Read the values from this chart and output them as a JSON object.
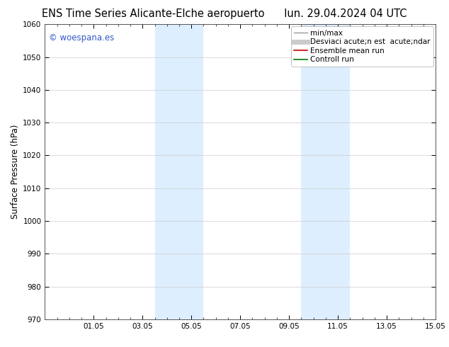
{
  "title_left": "ENS Time Series Alicante-Elche aeropuerto",
  "title_right": "lun. 29.04.2024 04 UTC",
  "ylabel": "Surface Pressure (hPa)",
  "xlim_start": 0,
  "xlim_end": 16,
  "ylim": [
    970,
    1060
  ],
  "yticks": [
    970,
    980,
    990,
    1000,
    1010,
    1020,
    1030,
    1040,
    1050,
    1060
  ],
  "xtick_labels": [
    "01.05",
    "03.05",
    "05.05",
    "07.05",
    "09.05",
    "11.05",
    "13.05",
    "15.05"
  ],
  "xtick_positions": [
    2,
    4,
    6,
    8,
    10,
    12,
    14,
    16
  ],
  "shaded_bands": [
    {
      "x_start": 4.5,
      "x_end": 6.5
    },
    {
      "x_start": 10.5,
      "x_end": 12.5
    }
  ],
  "shade_color": "#ddeeff",
  "watermark_text": "© woespana.es",
  "watermark_color": "#3355cc",
  "legend_labels": [
    "min/max",
    "Desviaci acute;n est  acute;ndar",
    "Ensemble mean run",
    "Controll run"
  ],
  "legend_colors": [
    "#999999",
    "#cccccc",
    "#cc0000",
    "#007700"
  ],
  "legend_lws": [
    1.0,
    5.0,
    1.2,
    1.2
  ],
  "bg_color": "#ffffff",
  "grid_color": "#cccccc",
  "tick_label_fontsize": 7.5,
  "title_fontsize": 10.5,
  "ylabel_fontsize": 8.5,
  "legend_fontsize": 7.5
}
